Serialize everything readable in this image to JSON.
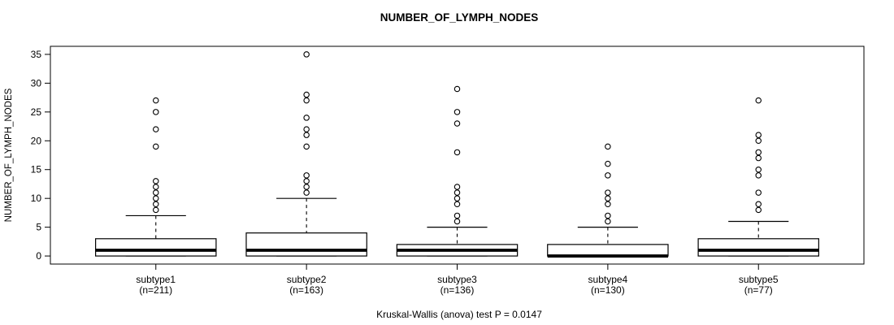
{
  "chart_data": {
    "type": "boxplot",
    "title": "NUMBER_OF_LYMPH_NODES",
    "ylabel": "NUMBER_OF_LYMPH_NODES",
    "xlabel": "",
    "ylim": [
      0,
      35
    ],
    "yticks": [
      0,
      5,
      10,
      15,
      20,
      25,
      30,
      35
    ],
    "grid": false,
    "legend": "none",
    "footnote": "Kruskal-Wallis (anova) test P = 0.0147",
    "groups": [
      {
        "label": "subtype1",
        "sublabel": "(n=211)",
        "n": 211,
        "whisker_low": 0,
        "q1": 0,
        "median": 1,
        "q3": 3,
        "whisker_high": 7,
        "outliers": [
          8,
          9,
          10,
          11,
          12,
          13,
          19,
          22,
          25,
          27
        ]
      },
      {
        "label": "subtype2",
        "sublabel": "(n=163)",
        "n": 163,
        "whisker_low": 0,
        "q1": 0,
        "median": 1,
        "q3": 4,
        "whisker_high": 10,
        "outliers": [
          11,
          12,
          13,
          14,
          19,
          21,
          22,
          24,
          27,
          28,
          35
        ]
      },
      {
        "label": "subtype3",
        "sublabel": "(n=136)",
        "n": 136,
        "whisker_low": 0,
        "q1": 0,
        "median": 1,
        "q3": 2,
        "whisker_high": 5,
        "outliers": [
          6,
          7,
          9,
          10,
          11,
          12,
          18,
          23,
          25,
          29
        ]
      },
      {
        "label": "subtype4",
        "sublabel": "(n=130)",
        "n": 130,
        "whisker_low": 0,
        "q1": 0,
        "median": 0,
        "q3": 2,
        "whisker_high": 5,
        "outliers": [
          6,
          7,
          9,
          10,
          11,
          14,
          16,
          19
        ]
      },
      {
        "label": "subtype5",
        "sublabel": "(n=77)",
        "n": 77,
        "whisker_low": 0,
        "q1": 0,
        "median": 1,
        "q3": 3,
        "whisker_high": 6,
        "outliers": [
          8,
          9,
          11,
          14,
          15,
          17,
          18,
          20,
          21,
          27
        ]
      }
    ],
    "colors": {
      "stroke": "#000000",
      "box_fill": "#ffffff",
      "background": "#ffffff"
    }
  }
}
